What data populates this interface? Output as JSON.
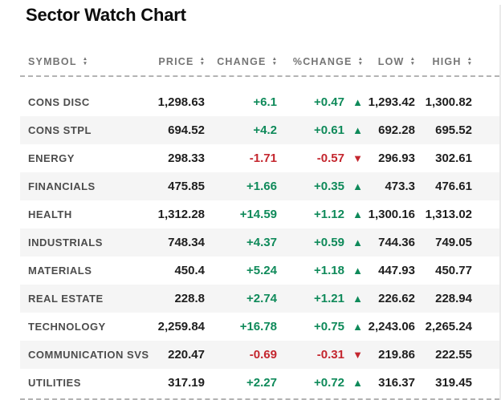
{
  "title": "Sector Watch Chart",
  "icons": {
    "sort_up": "▲",
    "sort_down": "▼",
    "up": "▲",
    "down": "▼"
  },
  "colors": {
    "positive": "#0f8a5a",
    "negative": "#c4262e",
    "header_text": "#757575",
    "alt_row_bg": "#f5f5f5"
  },
  "table": {
    "columns": [
      {
        "id": "symbol",
        "label": "SYMBOL",
        "sortable": true
      },
      {
        "id": "price",
        "label": "PRICE",
        "sortable": true
      },
      {
        "id": "change",
        "label": "CHANGE",
        "sortable": true
      },
      {
        "id": "pct-change",
        "label": "%CHANGE",
        "sortable": true
      },
      {
        "id": "low",
        "label": "LOW",
        "sortable": true
      },
      {
        "id": "high",
        "label": "HIGH",
        "sortable": true
      }
    ],
    "rows": [
      {
        "symbol": "CONS DISC",
        "price": "1,298.63",
        "change": "+6.1",
        "pct_change": "+0.47",
        "direction": "up",
        "low": "1,293.42",
        "high": "1,300.82"
      },
      {
        "symbol": "CONS STPL",
        "price": "694.52",
        "change": "+4.2",
        "pct_change": "+0.61",
        "direction": "up",
        "low": "692.28",
        "high": "695.52"
      },
      {
        "symbol": "ENERGY",
        "price": "298.33",
        "change": "-1.71",
        "pct_change": "-0.57",
        "direction": "down",
        "low": "296.93",
        "high": "302.61"
      },
      {
        "symbol": "FINANCIALS",
        "price": "475.85",
        "change": "+1.66",
        "pct_change": "+0.35",
        "direction": "up",
        "low": "473.3",
        "high": "476.61"
      },
      {
        "symbol": "HEALTH",
        "price": "1,312.28",
        "change": "+14.59",
        "pct_change": "+1.12",
        "direction": "up",
        "low": "1,300.16",
        "high": "1,313.02"
      },
      {
        "symbol": "INDUSTRIALS",
        "price": "748.34",
        "change": "+4.37",
        "pct_change": "+0.59",
        "direction": "up",
        "low": "744.36",
        "high": "749.05"
      },
      {
        "symbol": "MATERIALS",
        "price": "450.4",
        "change": "+5.24",
        "pct_change": "+1.18",
        "direction": "up",
        "low": "447.93",
        "high": "450.77"
      },
      {
        "symbol": "REAL ESTATE",
        "price": "228.8",
        "change": "+2.74",
        "pct_change": "+1.21",
        "direction": "up",
        "low": "226.62",
        "high": "228.94"
      },
      {
        "symbol": "TECHNOLOGY",
        "price": "2,259.84",
        "change": "+16.78",
        "pct_change": "+0.75",
        "direction": "up",
        "low": "2,243.06",
        "high": "2,265.24"
      },
      {
        "symbol": "COMMUNICATION SVS",
        "price": "220.47",
        "change": "-0.69",
        "pct_change": "-0.31",
        "direction": "down",
        "low": "219.86",
        "high": "222.55"
      },
      {
        "symbol": "UTILITIES",
        "price": "317.19",
        "change": "+2.27",
        "pct_change": "+0.72",
        "direction": "up",
        "low": "316.37",
        "high": "319.45"
      }
    ]
  }
}
